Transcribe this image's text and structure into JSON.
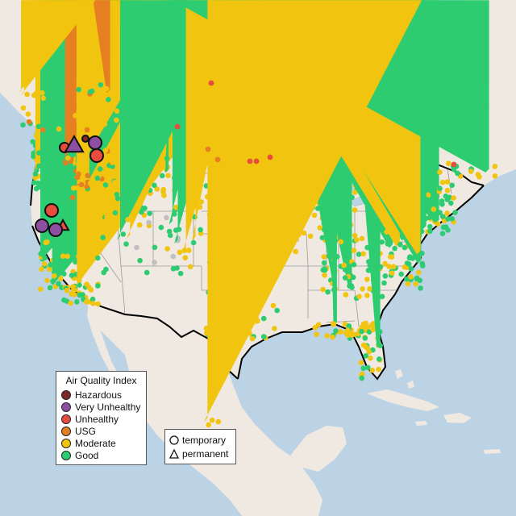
{
  "legend": {
    "title": "Air Quality Index",
    "items": [
      {
        "label": "Hazardous",
        "color": "#7e2a2a"
      },
      {
        "label": "Very Unhealthy",
        "color": "#8e4fa3"
      },
      {
        "label": "Unhealthy",
        "color": "#e74c3c"
      },
      {
        "label": "USG",
        "color": "#e67e22"
      },
      {
        "label": "Moderate",
        "color": "#f1c40f"
      },
      {
        "label": "Good",
        "color": "#2ecc71"
      }
    ]
  },
  "type_legend": {
    "items": [
      {
        "label": "temporary",
        "shape": "circle"
      },
      {
        "label": "permanent",
        "shape": "triangle"
      }
    ]
  },
  "colors": {
    "water": "#bcd3e6",
    "land": "#efe9e2",
    "state_line": "#9a9a9a",
    "border_line": "#000000",
    "no_data": "#c0c0c0"
  }
}
